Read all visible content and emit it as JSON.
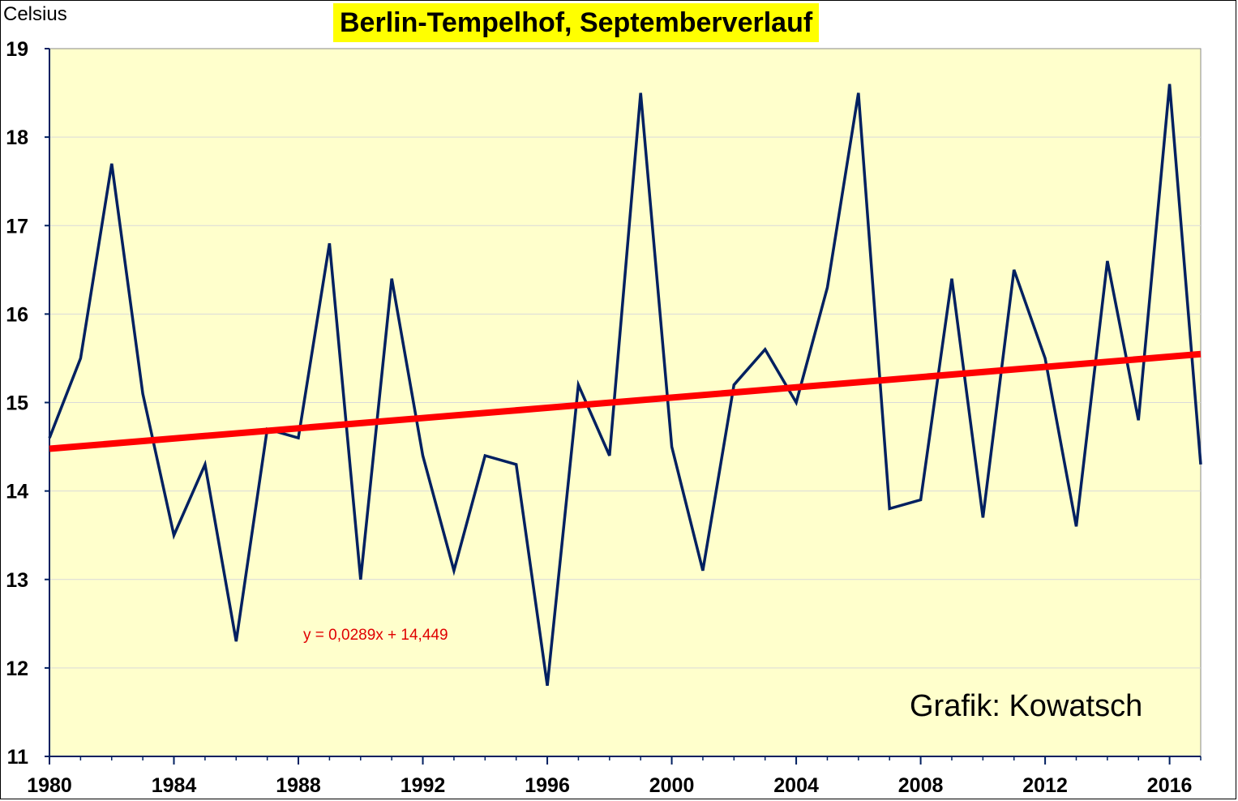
{
  "chart_data": {
    "type": "line",
    "title": "Berlin-Tempelhof, Septemberverlauf",
    "ylabel": "Celsius",
    "xlabel": "",
    "credit": "Grafik: Kowatsch",
    "trend_equation": "y = 0,0289x + 14,449",
    "trend": {
      "slope": 0.0289,
      "intercept": 14.449
    },
    "xlim": [
      1980,
      2017
    ],
    "ylim": [
      11,
      19
    ],
    "x_ticks": [
      1980,
      1984,
      1988,
      1992,
      1996,
      2000,
      2004,
      2008,
      2012,
      2016
    ],
    "y_ticks": [
      11,
      12,
      13,
      14,
      15,
      16,
      17,
      18,
      19
    ],
    "grid": true,
    "series": [
      {
        "x": [
          1980,
          1981,
          1982,
          1983,
          1984,
          1985,
          1986,
          1987,
          1988,
          1989,
          1990,
          1991,
          1992,
          1993,
          1994,
          1995,
          1996,
          1997,
          1998,
          1999,
          2000,
          2001,
          2002,
          2003,
          2004,
          2005,
          2006,
          2007,
          2008,
          2009,
          2010,
          2011,
          2012,
          2013,
          2014,
          2015,
          2016,
          2017
        ],
        "values": [
          14.6,
          15.5,
          17.7,
          15.1,
          13.5,
          14.3,
          12.3,
          14.7,
          14.6,
          16.8,
          13.0,
          16.4,
          14.4,
          13.1,
          14.4,
          14.3,
          11.8,
          15.2,
          14.4,
          18.5,
          14.5,
          13.1,
          15.2,
          15.6,
          15.0,
          16.3,
          18.5,
          13.8,
          13.9,
          16.4,
          13.7,
          16.5,
          15.5,
          13.6,
          16.6,
          14.8,
          18.6,
          14.3
        ]
      }
    ],
    "colors": {
      "background": "#ffffcc",
      "line": "#002060",
      "trend": "#ff0000",
      "title_highlight": "#ffff00"
    }
  }
}
